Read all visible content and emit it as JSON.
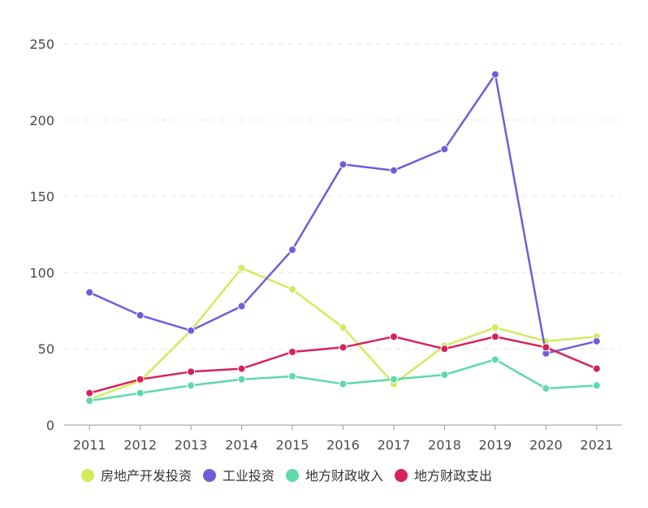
{
  "chart_data": {
    "type": "line",
    "title": "",
    "xlabel": "",
    "ylabel": "",
    "ylim": [
      0,
      250
    ],
    "grid": true,
    "legend_position": "bottom",
    "categories": [
      "2011",
      "2012",
      "2013",
      "2014",
      "2015",
      "2016",
      "2017",
      "2018",
      "2019",
      "2020",
      "2021"
    ],
    "y_ticks": [
      0,
      50,
      100,
      150,
      200,
      250
    ],
    "series": [
      {
        "name": "房地产开发投资",
        "color": "#d3ea5c",
        "values": [
          17,
          29,
          62,
          103,
          89,
          64,
          27,
          52,
          64,
          55,
          58
        ]
      },
      {
        "name": "工业投资",
        "color": "#6e5ed9",
        "values": [
          87,
          72,
          62,
          78,
          115,
          171,
          167,
          181,
          230,
          47,
          55
        ]
      },
      {
        "name": "地方财政收入",
        "color": "#5dd9ac",
        "values": [
          16,
          21,
          26,
          30,
          32,
          27,
          30,
          33,
          43,
          24,
          26
        ]
      },
      {
        "name": "地方财政支出",
        "color": "#d7215b",
        "values": [
          21,
          30,
          35,
          37,
          48,
          51,
          58,
          50,
          58,
          51,
          37
        ]
      }
    ]
  }
}
